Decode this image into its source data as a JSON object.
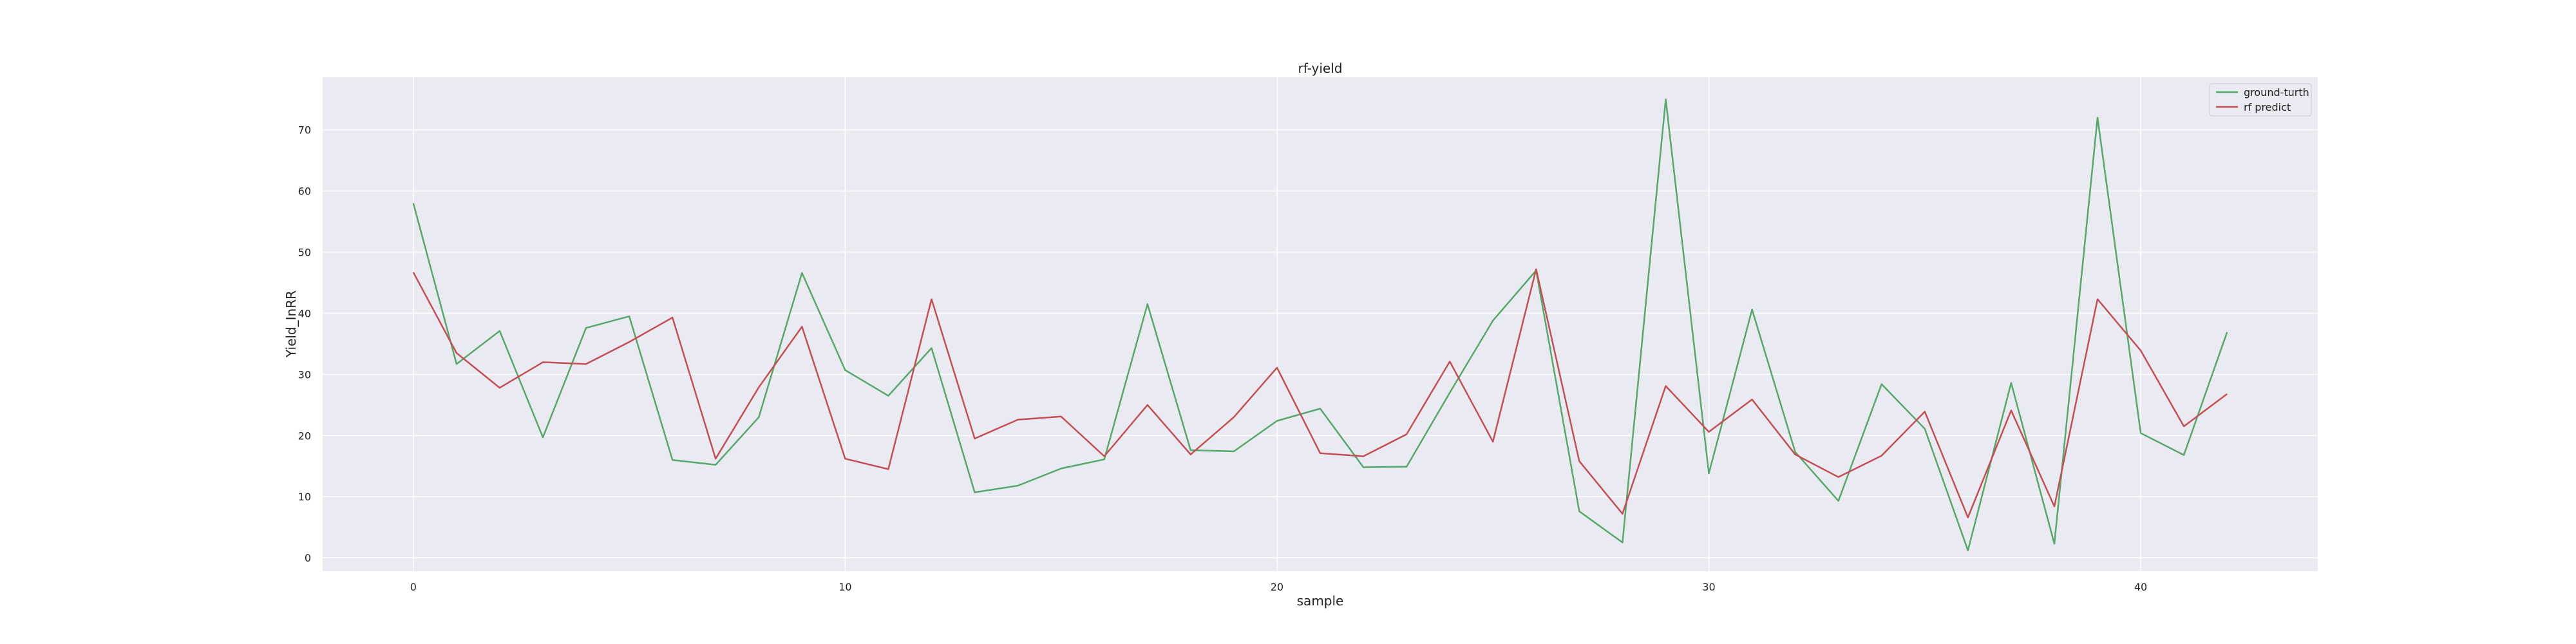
{
  "chart_data": {
    "type": "line",
    "title": "rf-yield",
    "xlabel": "sample",
    "ylabel": "Yield_InRR",
    "xlim": [
      -2.1,
      44.1
    ],
    "ylim": [
      -2.2,
      78.6
    ],
    "xticks": [
      0,
      10,
      20,
      30,
      40
    ],
    "yticks": [
      0,
      10,
      20,
      30,
      40,
      50,
      60,
      70
    ],
    "grid": true,
    "legend_position": "top-right",
    "x": [
      0,
      1,
      2,
      3,
      4,
      5,
      6,
      7,
      8,
      9,
      10,
      11,
      12,
      13,
      14,
      15,
      16,
      17,
      18,
      19,
      20,
      21,
      22,
      23,
      24,
      25,
      26,
      27,
      28,
      29,
      30,
      31,
      32,
      33,
      34,
      35,
      36,
      37,
      38,
      39,
      40,
      41,
      42
    ],
    "series": [
      {
        "name": "ground-turth",
        "color": "#55a868",
        "values": [
          58.0,
          31.7,
          37.1,
          19.7,
          37.6,
          39.5,
          16.0,
          15.2,
          23.0,
          46.6,
          30.7,
          26.5,
          34.3,
          10.7,
          11.8,
          14.6,
          16.1,
          41.5,
          17.6,
          17.4,
          22.4,
          24.4,
          14.8,
          14.9,
          27.0,
          38.8,
          47.0,
          7.6,
          2.5,
          75.0,
          13.8,
          40.6,
          17.3,
          9.3,
          28.4,
          21.1,
          1.2,
          28.6,
          2.3,
          72.0,
          20.4,
          16.8,
          36.9
        ]
      },
      {
        "name": "rf predict",
        "color": "#c44e52",
        "values": [
          46.7,
          33.5,
          27.8,
          32.0,
          31.7,
          35.3,
          39.3,
          16.2,
          27.9,
          37.8,
          16.2,
          14.5,
          42.3,
          19.5,
          22.6,
          23.1,
          16.6,
          25.0,
          16.9,
          23.0,
          31.1,
          17.1,
          16.6,
          20.2,
          32.1,
          19.0,
          47.2,
          15.8,
          7.2,
          28.1,
          20.6,
          25.9,
          16.9,
          13.2,
          16.7,
          23.9,
          6.6,
          24.1,
          8.4,
          42.3,
          33.9,
          21.5,
          26.8
        ]
      }
    ]
  }
}
